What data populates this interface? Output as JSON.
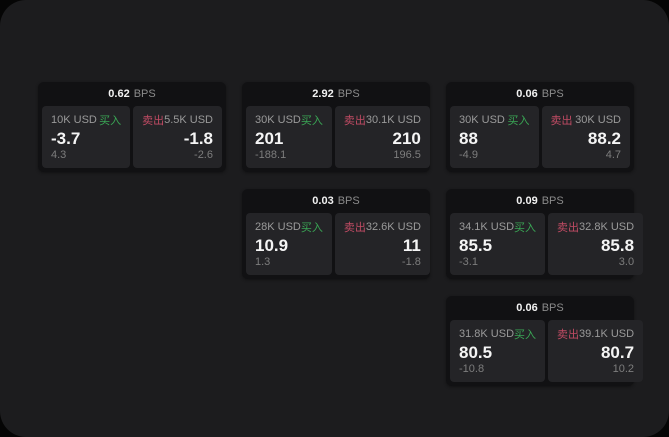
{
  "labels": {
    "bps_unit": "BPS",
    "buy": "买入",
    "sell": "卖出"
  },
  "colors": {
    "buy_green": "#3aa655",
    "sell_red": "#c14b64",
    "window_bg": "#1c1c1e",
    "card_bg": "#111113",
    "tile_bg": "#242427"
  },
  "cards": [
    {
      "bps": "0.62",
      "col": 1,
      "row": 1,
      "buy": {
        "amount": "10K USD",
        "value": "-3.7",
        "sub": "4.3"
      },
      "sell": {
        "amount": "5.5K USD",
        "value": "-1.8",
        "sub": "-2.6"
      }
    },
    {
      "bps": "2.92",
      "col": 2,
      "row": 1,
      "buy": {
        "amount": "30K USD",
        "value": "201",
        "sub": "-188.1"
      },
      "sell": {
        "amount": "30.1K USD",
        "value": "210",
        "sub": "196.5"
      }
    },
    {
      "bps": "0.06",
      "col": 3,
      "row": 1,
      "buy": {
        "amount": "30K USD",
        "value": "88",
        "sub": "-4.9"
      },
      "sell": {
        "amount": "30K USD",
        "value": "88.2",
        "sub": "4.7"
      }
    },
    {
      "bps": "0.03",
      "col": 2,
      "row": 2,
      "buy": {
        "amount": "28K USD",
        "value": "10.9",
        "sub": "1.3"
      },
      "sell": {
        "amount": "32.6K USD",
        "value": "11",
        "sub": "-1.8"
      }
    },
    {
      "bps": "0.09",
      "col": 3,
      "row": 2,
      "buy": {
        "amount": "34.1K USD",
        "value": "85.5",
        "sub": "-3.1"
      },
      "sell": {
        "amount": "32.8K USD",
        "value": "85.8",
        "sub": "3.0"
      }
    },
    {
      "bps": "0.06",
      "col": 3,
      "row": 3,
      "buy": {
        "amount": "31.8K USD",
        "value": "80.5",
        "sub": "-10.8"
      },
      "sell": {
        "amount": "39.1K USD",
        "value": "80.7",
        "sub": "10.2"
      }
    }
  ]
}
